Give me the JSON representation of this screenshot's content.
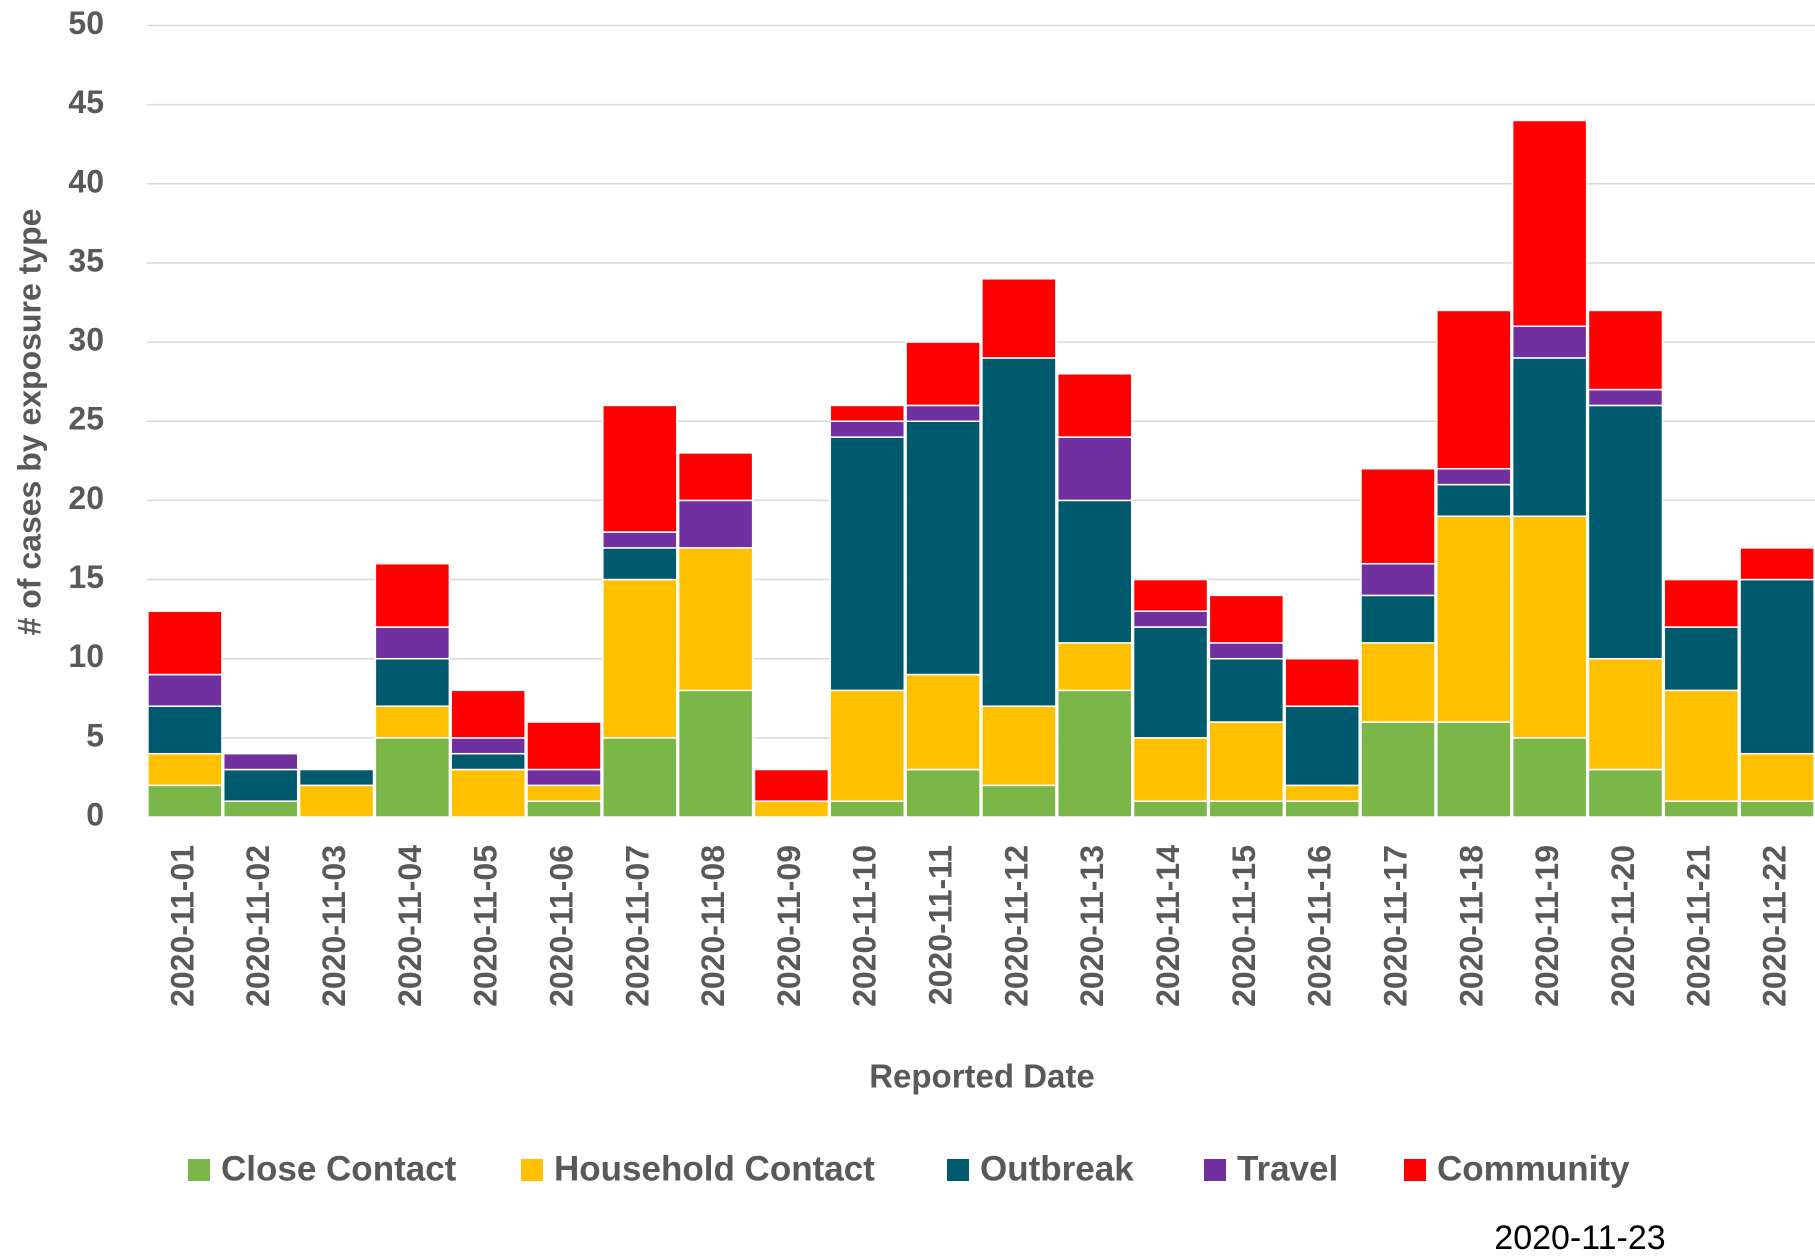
{
  "chart_data": {
    "type": "stacked_bar",
    "y_label": "# of cases by exposure type",
    "x_label": "Reported Date",
    "annotation": "2020-11-23",
    "categories": [
      "2020-11-01",
      "2020-11-02",
      "2020-11-03",
      "2020-11-04",
      "2020-11-05",
      "2020-11-06",
      "2020-11-07",
      "2020-11-08",
      "2020-11-09",
      "2020-11-10",
      "2020-11-11",
      "2020-11-12",
      "2020-11-13",
      "2020-11-14",
      "2020-11-15",
      "2020-11-16",
      "2020-11-17",
      "2020-11-18",
      "2020-11-19",
      "2020-11-20",
      "2020-11-21",
      "2020-11-22"
    ],
    "series": [
      {
        "name": "Close Contact",
        "color": "#7ab648",
        "values": [
          2,
          1,
          0,
          5,
          0,
          1,
          5,
          8,
          0,
          1,
          3,
          2,
          8,
          1,
          1,
          1,
          6,
          6,
          5,
          3,
          1,
          1
        ]
      },
      {
        "name": "Household Contact",
        "color": "#ffc000",
        "values": [
          2,
          0,
          2,
          2,
          3,
          1,
          10,
          9,
          1,
          7,
          6,
          5,
          3,
          4,
          5,
          1,
          5,
          13,
          14,
          7,
          7,
          3
        ]
      },
      {
        "name": "Outbreak",
        "color": "#005a6e",
        "values": [
          3,
          2,
          1,
          3,
          1,
          0,
          2,
          0,
          0,
          16,
          16,
          22,
          9,
          7,
          4,
          5,
          3,
          2,
          10,
          16,
          4,
          11
        ]
      },
      {
        "name": "Travel",
        "color": "#7030a0",
        "values": [
          2,
          1,
          0,
          2,
          1,
          1,
          1,
          3,
          0,
          1,
          1,
          0,
          4,
          1,
          1,
          0,
          2,
          1,
          2,
          1,
          0,
          0
        ]
      },
      {
        "name": "Community",
        "color": "#ff0000",
        "values": [
          4,
          0,
          0,
          4,
          3,
          3,
          8,
          3,
          2,
          1,
          4,
          5,
          4,
          2,
          3,
          3,
          6,
          10,
          13,
          5,
          3,
          2
        ]
      }
    ],
    "ylim": [
      0,
      50
    ],
    "yticks": [
      0,
      5,
      10,
      15,
      20,
      25,
      30,
      35,
      40,
      45,
      50
    ],
    "grid": true,
    "legend": "bottom"
  }
}
